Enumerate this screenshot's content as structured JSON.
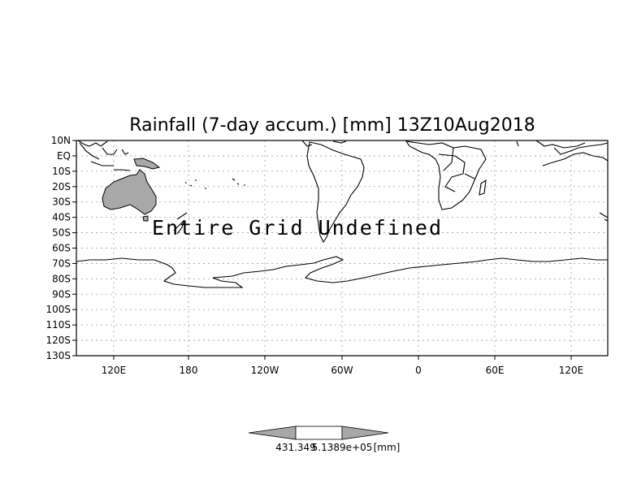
{
  "map": {
    "title": "Rainfall (7-day accum.) [mm] 13Z10Aug2018",
    "overlay_text": "Entire Grid Undefined",
    "lat_labels": [
      "10N",
      "EQ",
      "10S",
      "20S",
      "30S",
      "40S",
      "50S",
      "60S",
      "70S",
      "80S",
      "90S",
      "100S",
      "110S",
      "120S",
      "130S"
    ],
    "lon_labels": [
      "120E",
      "180",
      "120W",
      "60W",
      "0",
      "60E",
      "120E"
    ],
    "gridlines": true,
    "projection": "latlon",
    "colors": {
      "land_shaded": "#a8a8a8",
      "coast": "#000000",
      "grid": "#a0a0a0"
    }
  },
  "colorbar": {
    "label_left": "431.349",
    "label_right": "5.1389e+05",
    "unit": "[mm]",
    "colors": {
      "left_triangle": "#a8a8a8",
      "middle": "#ffffff",
      "right_triangle": "#a8a8a8"
    }
  }
}
